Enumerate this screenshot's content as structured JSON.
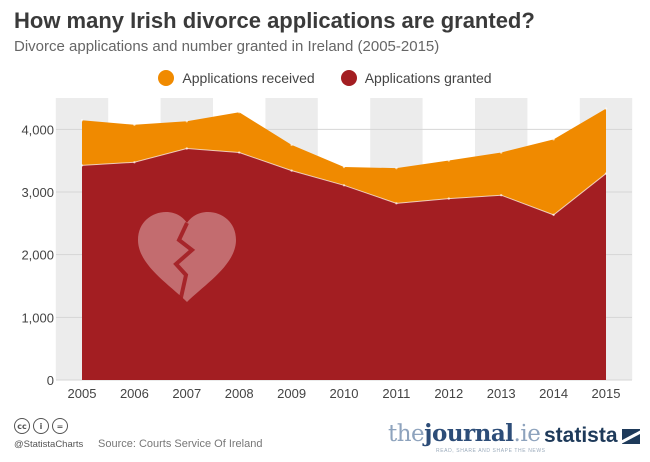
{
  "header": {
    "title": "How many Irish divorce applications are granted?",
    "subtitle": "Divorce applications and number granted in Ireland (2005-2015)"
  },
  "colors": {
    "received": "#f08a00",
    "granted": "#a31e22",
    "band": "#ececec"
  },
  "chart_data": {
    "type": "area",
    "title": "How many Irish divorce applications are granted?",
    "subtitle": "Divorce applications and number granted in Ireland (2005-2015)",
    "x": [
      "2005",
      "2006",
      "2007",
      "2008",
      "2009",
      "2010",
      "2011",
      "2012",
      "2013",
      "2014",
      "2015"
    ],
    "series": [
      {
        "name": "Applications received",
        "values": [
          4145,
          4073,
          4128,
          4273,
          3752,
          3399,
          3381,
          3502,
          3630,
          3840,
          4331
        ]
      },
      {
        "name": "Applications granted",
        "values": [
          3424,
          3474,
          3694,
          3630,
          3341,
          3107,
          2819,
          2895,
          2949,
          2635,
          3294
        ]
      }
    ],
    "yticks": [
      "0",
      "1,000",
      "2,000",
      "3,000",
      "4,000"
    ],
    "ylim": [
      0,
      4500
    ],
    "grid": true,
    "legend_position": "top-center"
  },
  "footer": {
    "handle": "@StatistaCharts",
    "source": "Source: Courts Service Of Ireland",
    "cc_icons": [
      "cc",
      "i",
      "="
    ],
    "journal_pre": "the",
    "journal_mid": "journal",
    "journal_post": ".ie",
    "journal_tagline": "READ, SHARE AND SHAPE THE NEWS",
    "statista": "statista"
  }
}
